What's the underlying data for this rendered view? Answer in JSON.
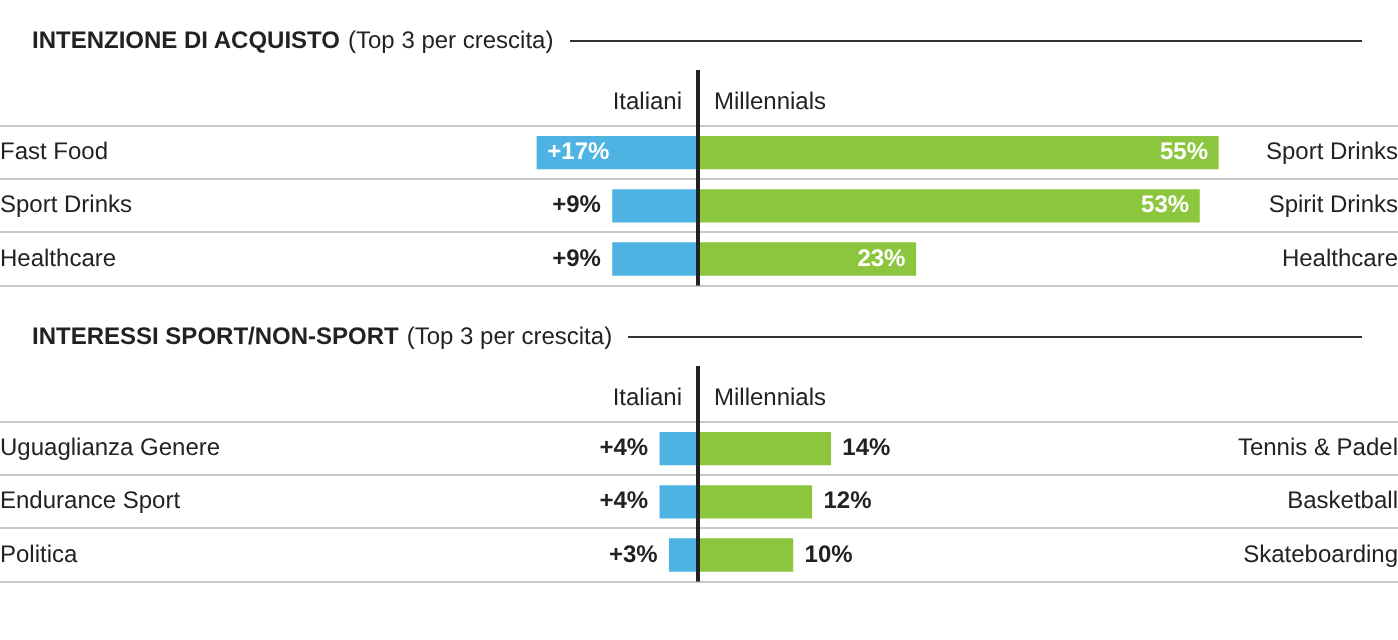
{
  "chart_data": [
    {
      "type": "bar",
      "orientation": "horizontal",
      "title": "INTENZIONE DI ACQUISTO",
      "subtitle": "(Top 3 per crescita)",
      "categories": [
        "Fast Food",
        "Sport Drinks",
        "Healthcare"
      ],
      "series": [
        {
          "name": "Italiani",
          "color": "#4eb3e3",
          "values": [
            17,
            9,
            9
          ],
          "value_labels": [
            "+17%",
            "+9%",
            "+9%"
          ]
        }
      ],
      "tick_labels": "y",
      "grid": "y",
      "legend": false
    },
    {
      "type": "bar",
      "orientation": "horizontal",
      "categories": [
        "Sport Drinks",
        "Spirit Drinks",
        "Healthcare"
      ],
      "series": [
        {
          "name": "Millennials",
          "color": "#8cc63e",
          "values": [
            55,
            53,
            23
          ],
          "value_labels": [
            "55%",
            "53%",
            "23%"
          ]
        }
      ],
      "tick_labels": "y",
      "grid": "y",
      "legend": false
    },
    {
      "type": "bar",
      "orientation": "horizontal",
      "title": "INTERESSI SPORT/NON-SPORT",
      "subtitle": "(Top 3 per crescita)",
      "categories": [
        "Uguaglianza Genere",
        "Endurance Sport",
        "Politica"
      ],
      "series": [
        {
          "name": "Italiani",
          "color": "#4eb3e3",
          "values": [
            4,
            4,
            3
          ],
          "value_labels": [
            "+4%",
            "+4%",
            "+3%"
          ]
        }
      ],
      "tick_labels": "y",
      "grid": "y",
      "legend": false
    },
    {
      "type": "bar",
      "orientation": "horizontal",
      "categories": [
        "Tennis & Padel",
        "Basketball",
        "Skateboarding"
      ],
      "series": [
        {
          "name": "Millennials",
          "color": "#8cc63e",
          "values": [
            14,
            12,
            10
          ],
          "value_labels": [
            "14%",
            "12%",
            "10%"
          ]
        }
      ],
      "tick_labels": "y",
      "grid": "y",
      "legend": false
    }
  ]
}
